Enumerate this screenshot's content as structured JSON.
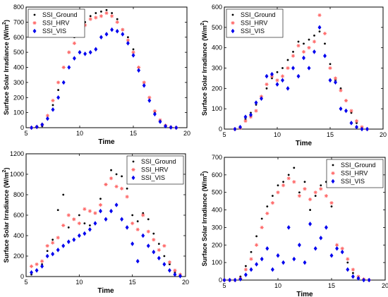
{
  "chart_data": [
    {
      "type": "scatter",
      "xlabel": "Time",
      "ylabel": "Surface Solar Irradiance  (W/m",
      "ylabel_sup": "2",
      "ylabel_close": ")",
      "xlim": [
        5,
        20
      ],
      "ylim": [
        0,
        800
      ],
      "xticks": [
        5,
        10,
        15,
        20
      ],
      "yticks": [
        0,
        100,
        200,
        300,
        400,
        500,
        600,
        700,
        800
      ],
      "legend_position": "top-left",
      "colors": {
        "ground": "#000000",
        "hrv": "#ff6a6a",
        "vis": "#0000ee"
      },
      "series": [
        {
          "name": "SSI_Ground",
          "marker": "dot",
          "x": [
            5.5,
            6.0,
            6.5,
            7.0,
            7.5,
            8.0,
            8.5,
            9.0,
            9.5,
            10.0,
            10.5,
            11.0,
            11.5,
            12.0,
            12.5,
            13.0,
            13.5,
            14.0,
            14.5,
            15.0,
            15.5,
            16.0,
            16.5,
            17.0,
            17.5,
            18.0,
            18.5,
            19.0
          ],
          "y": [
            0,
            2,
            10,
            60,
            150,
            250,
            400,
            500,
            600,
            650,
            700,
            740,
            760,
            770,
            780,
            760,
            720,
            650,
            600,
            520,
            400,
            280,
            180,
            100,
            40,
            10,
            2,
            0
          ]
        },
        {
          "name": "SSI_HRV",
          "marker": "star",
          "x": [
            5.5,
            6.0,
            6.5,
            7.0,
            7.5,
            8.0,
            8.5,
            9.0,
            9.5,
            10.0,
            10.5,
            11.0,
            11.5,
            12.0,
            12.5,
            13.0,
            13.5,
            14.0,
            14.5,
            15.0,
            15.5,
            16.0,
            16.5,
            17.0,
            17.5,
            18.0,
            18.5,
            19.0
          ],
          "y": [
            0,
            5,
            20,
            80,
            180,
            300,
            400,
            500,
            560,
            620,
            680,
            720,
            730,
            740,
            760,
            740,
            700,
            650,
            580,
            500,
            400,
            300,
            200,
            110,
            50,
            15,
            3,
            0
          ]
        },
        {
          "name": "SSI_VIS",
          "marker": "diamond",
          "x": [
            5.5,
            6.0,
            6.5,
            7.0,
            7.5,
            8.0,
            8.5,
            9.0,
            9.5,
            10.0,
            10.5,
            11.0,
            11.5,
            12.0,
            12.5,
            13.0,
            13.5,
            14.0,
            14.5,
            15.0,
            15.5,
            16.0,
            16.5,
            17.0,
            17.5,
            18.0,
            18.5,
            19.0
          ],
          "y": [
            0,
            5,
            20,
            60,
            120,
            200,
            300,
            400,
            460,
            500,
            490,
            500,
            520,
            600,
            620,
            650,
            640,
            620,
            560,
            480,
            380,
            280,
            180,
            90,
            40,
            10,
            2,
            0
          ]
        }
      ]
    },
    {
      "type": "scatter",
      "xlabel": "Time",
      "ylabel": "Surface Solar Irradiance  (W/m",
      "ylabel_sup": "2",
      "ylabel_close": ")",
      "xlim": [
        5,
        20
      ],
      "ylim": [
        0,
        600
      ],
      "xticks": [
        5,
        10,
        15,
        20
      ],
      "yticks": [
        0,
        100,
        200,
        300,
        400,
        500,
        600
      ],
      "legend_position": "top-left",
      "colors": {
        "ground": "#000000",
        "hrv": "#ff6a6a",
        "vis": "#0000ee"
      },
      "series": [
        {
          "name": "SSI_Ground",
          "marker": "dot",
          "x": [
            6.0,
            6.5,
            7.0,
            7.5,
            8.0,
            8.5,
            9.0,
            9.5,
            10.0,
            10.5,
            11.0,
            11.5,
            12.0,
            12.5,
            13.0,
            13.5,
            14.0,
            14.5,
            15.0,
            15.5,
            16.0,
            16.5,
            17.0,
            17.5,
            18.0,
            18.5
          ],
          "y": [
            0,
            10,
            50,
            80,
            120,
            150,
            200,
            250,
            280,
            300,
            340,
            380,
            430,
            420,
            440,
            460,
            480,
            420,
            320,
            240,
            200,
            140,
            80,
            30,
            5,
            0
          ]
        },
        {
          "name": "SSI_HRV",
          "marker": "star",
          "x": [
            6.0,
            6.5,
            7.0,
            7.5,
            8.0,
            8.5,
            9.0,
            9.5,
            10.0,
            10.5,
            11.0,
            11.5,
            12.0,
            12.5,
            13.0,
            13.5,
            14.0,
            14.5,
            15.0,
            15.5,
            16.0,
            16.5,
            17.0,
            17.5,
            18.0,
            18.5
          ],
          "y": [
            0,
            5,
            40,
            60,
            90,
            160,
            220,
            260,
            240,
            260,
            300,
            360,
            410,
            380,
            400,
            430,
            560,
            470,
            300,
            250,
            190,
            140,
            90,
            40,
            10,
            0
          ]
        },
        {
          "name": "SSI_VIS",
          "marker": "diamond",
          "x": [
            6.0,
            6.5,
            7.0,
            7.5,
            8.0,
            8.5,
            9.0,
            9.5,
            10.0,
            10.5,
            11.0,
            11.5,
            12.0,
            12.5,
            13.0,
            13.5,
            14.0,
            14.5,
            15.0,
            15.5,
            16.0,
            16.5,
            17.0,
            17.5,
            18.0,
            18.5
          ],
          "y": [
            0,
            10,
            60,
            70,
            130,
            150,
            260,
            270,
            220,
            240,
            200,
            300,
            260,
            350,
            300,
            380,
            500,
            360,
            240,
            230,
            100,
            90,
            30,
            10,
            0,
            0
          ]
        }
      ]
    },
    {
      "type": "scatter",
      "xlabel": "Time",
      "ylabel": "Surface Solar Irradiance  (W/m",
      "ylabel_sup": "2",
      "ylabel_close": ")",
      "xlim": [
        5,
        20
      ],
      "ylim": [
        0,
        1200
      ],
      "xticks": [
        5,
        10,
        15,
        20
      ],
      "yticks": [
        0,
        200,
        400,
        600,
        800,
        1000,
        1200
      ],
      "legend_position": "top-right",
      "colors": {
        "ground": "#000000",
        "hrv": "#ff6a6a",
        "vis": "#0000ee"
      },
      "series": [
        {
          "name": "SSI_Ground",
          "marker": "dot",
          "x": [
            5.5,
            6.0,
            6.5,
            7.0,
            7.5,
            8.0,
            8.5,
            9.0,
            9.5,
            10.0,
            10.5,
            11.0,
            11.5,
            12.0,
            12.5,
            13.0,
            13.5,
            14.0,
            14.5,
            15.0,
            15.5,
            16.0,
            16.5,
            17.0,
            17.5,
            18.0,
            18.5,
            19.0,
            19.5
          ],
          "y": [
            20,
            60,
            120,
            250,
            360,
            650,
            800,
            480,
            560,
            600,
            520,
            500,
            620,
            760,
            900,
            1040,
            1000,
            980,
            860,
            600,
            540,
            620,
            560,
            420,
            320,
            200,
            120,
            40,
            10
          ]
        },
        {
          "name": "SSI_HRV",
          "marker": "star",
          "x": [
            5.5,
            6.0,
            6.5,
            7.0,
            7.5,
            8.0,
            8.5,
            9.0,
            9.5,
            10.0,
            10.5,
            11.0,
            11.5,
            12.0,
            12.5,
            13.0,
            13.5,
            14.0,
            14.5,
            15.0,
            15.5,
            16.0,
            16.5,
            17.0,
            17.5,
            18.0,
            18.5,
            19.0,
            19.5
          ],
          "y": [
            100,
            120,
            150,
            300,
            330,
            380,
            500,
            600,
            560,
            520,
            660,
            640,
            620,
            700,
            900,
            960,
            880,
            860,
            780,
            520,
            460,
            600,
            440,
            360,
            260,
            300,
            140,
            60,
            20
          ]
        },
        {
          "name": "SSI_VIS",
          "marker": "diamond",
          "x": [
            5.5,
            6.0,
            6.5,
            7.0,
            7.5,
            8.0,
            8.5,
            9.0,
            9.5,
            10.0,
            10.5,
            11.0,
            11.5,
            12.0,
            12.5,
            13.0,
            13.5,
            14.0,
            14.5,
            15.0,
            15.5,
            16.0,
            16.5,
            17.0,
            17.5,
            18.0,
            18.5,
            19.0,
            19.5
          ],
          "y": [
            40,
            60,
            100,
            200,
            220,
            260,
            300,
            340,
            360,
            400,
            420,
            460,
            520,
            640,
            560,
            640,
            700,
            560,
            480,
            320,
            150,
            400,
            300,
            240,
            180,
            120,
            60,
            20,
            5
          ]
        }
      ]
    },
    {
      "type": "scatter",
      "xlabel": "Time",
      "ylabel": "Surface Solar Irradiance  (W/m",
      "ylabel_sup": "2",
      "ylabel_close": ")",
      "xlim": [
        5,
        20
      ],
      "ylim": [
        0,
        700
      ],
      "xticks": [
        5,
        10,
        15,
        20
      ],
      "yticks": [
        0,
        100,
        200,
        300,
        400,
        500,
        600,
        700
      ],
      "legend_position": "top-right",
      "colors": {
        "ground": "#000000",
        "hrv": "#ff6a6a",
        "vis": "#0000ee"
      },
      "series": [
        {
          "name": "SSI_Ground",
          "marker": "dot",
          "x": [
            5.0,
            5.5,
            6.0,
            6.5,
            7.0,
            7.5,
            8.0,
            8.5,
            9.0,
            9.5,
            10.0,
            10.5,
            11.0,
            11.5,
            12.0,
            12.5,
            13.0,
            13.5,
            14.0,
            14.5,
            15.0,
            15.5,
            16.0,
            16.5,
            17.0,
            17.5,
            18.0,
            18.5
          ],
          "y": [
            0,
            0,
            0,
            20,
            80,
            160,
            250,
            350,
            420,
            480,
            540,
            560,
            600,
            640,
            500,
            560,
            400,
            480,
            540,
            560,
            420,
            200,
            160,
            100,
            40,
            10,
            0,
            0
          ]
        },
        {
          "name": "SSI_HRV",
          "marker": "star",
          "x": [
            5.0,
            5.5,
            6.0,
            6.5,
            7.0,
            7.5,
            8.0,
            8.5,
            9.0,
            9.5,
            10.0,
            10.5,
            11.0,
            11.5,
            12.0,
            12.5,
            13.0,
            13.5,
            14.0,
            14.5,
            15.0,
            15.5,
            16.0,
            16.5,
            17.0,
            17.5,
            18.0,
            18.5
          ],
          "y": [
            0,
            0,
            0,
            10,
            60,
            120,
            200,
            300,
            380,
            440,
            500,
            540,
            580,
            560,
            480,
            520,
            460,
            500,
            520,
            480,
            440,
            200,
            180,
            120,
            60,
            20,
            5,
            0
          ]
        },
        {
          "name": "SSI_VIS",
          "marker": "diamond",
          "x": [
            5.0,
            5.5,
            6.0,
            6.5,
            7.0,
            7.5,
            8.0,
            8.5,
            9.0,
            9.5,
            10.0,
            10.5,
            11.0,
            11.5,
            12.0,
            12.5,
            13.0,
            13.5,
            14.0,
            14.5,
            15.0,
            15.5,
            16.0,
            16.5,
            17.0,
            17.5,
            18.0,
            18.5
          ],
          "y": [
            0,
            0,
            0,
            5,
            30,
            60,
            90,
            120,
            180,
            60,
            140,
            100,
            300,
            120,
            200,
            100,
            320,
            180,
            240,
            300,
            140,
            180,
            160,
            60,
            20,
            10,
            0,
            0
          ]
        }
      ]
    }
  ]
}
